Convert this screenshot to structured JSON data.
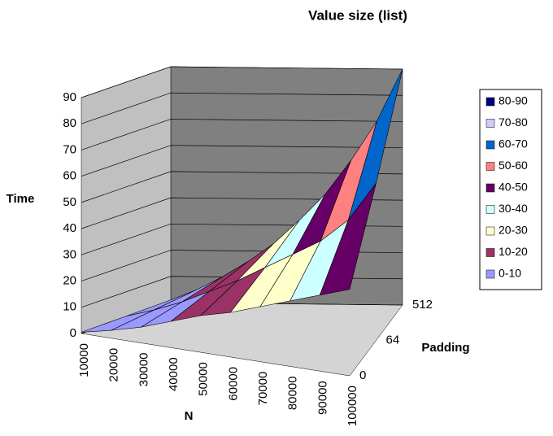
{
  "chart_data": {
    "type": "surface",
    "title": "Value size (list)",
    "y_label": "Time",
    "x_label": "N",
    "depth_label": "Padding",
    "categories": [
      "10000",
      "20000",
      "30000",
      "40000",
      "50000",
      "60000",
      "70000",
      "80000",
      "90000",
      "100000"
    ],
    "depth_categories": [
      "0",
      "64",
      "512"
    ],
    "series": [
      {
        "name": "0",
        "values": [
          0.5,
          3,
          6,
          10,
          14,
          17,
          21,
          25,
          29,
          33
        ]
      },
      {
        "name": "64",
        "values": [
          0.7,
          4,
          8,
          13,
          18,
          24,
          30,
          36,
          45,
          60
        ]
      },
      {
        "name": "512",
        "values": [
          1,
          5,
          10,
          16,
          23,
          32,
          42,
          55,
          70,
          90
        ]
      }
    ],
    "ylim": [
      0,
      90
    ],
    "yticks": [
      0,
      10,
      20,
      30,
      40,
      50,
      60,
      70,
      80,
      90
    ],
    "grid": true,
    "legend": [
      {
        "label": "80-90",
        "min": 80,
        "max": 90,
        "color": "#000080"
      },
      {
        "label": "70-80",
        "min": 70,
        "max": 80,
        "color": "#ccccff"
      },
      {
        "label": "60-70",
        "min": 60,
        "max": 70,
        "color": "#0066cc"
      },
      {
        "label": "50-60",
        "min": 50,
        "max": 60,
        "color": "#ff8080"
      },
      {
        "label": "40-50",
        "min": 40,
        "max": 50,
        "color": "#660066"
      },
      {
        "label": "30-40",
        "min": 30,
        "max": 40,
        "color": "#ccffff"
      },
      {
        "label": "20-30",
        "min": 20,
        "max": 30,
        "color": "#ffffcc"
      },
      {
        "label": "10-20",
        "min": 10,
        "max": 20,
        "color": "#993366"
      },
      {
        "label": "0-10",
        "min": 0,
        "max": 10,
        "color": "#9999ff"
      }
    ]
  }
}
